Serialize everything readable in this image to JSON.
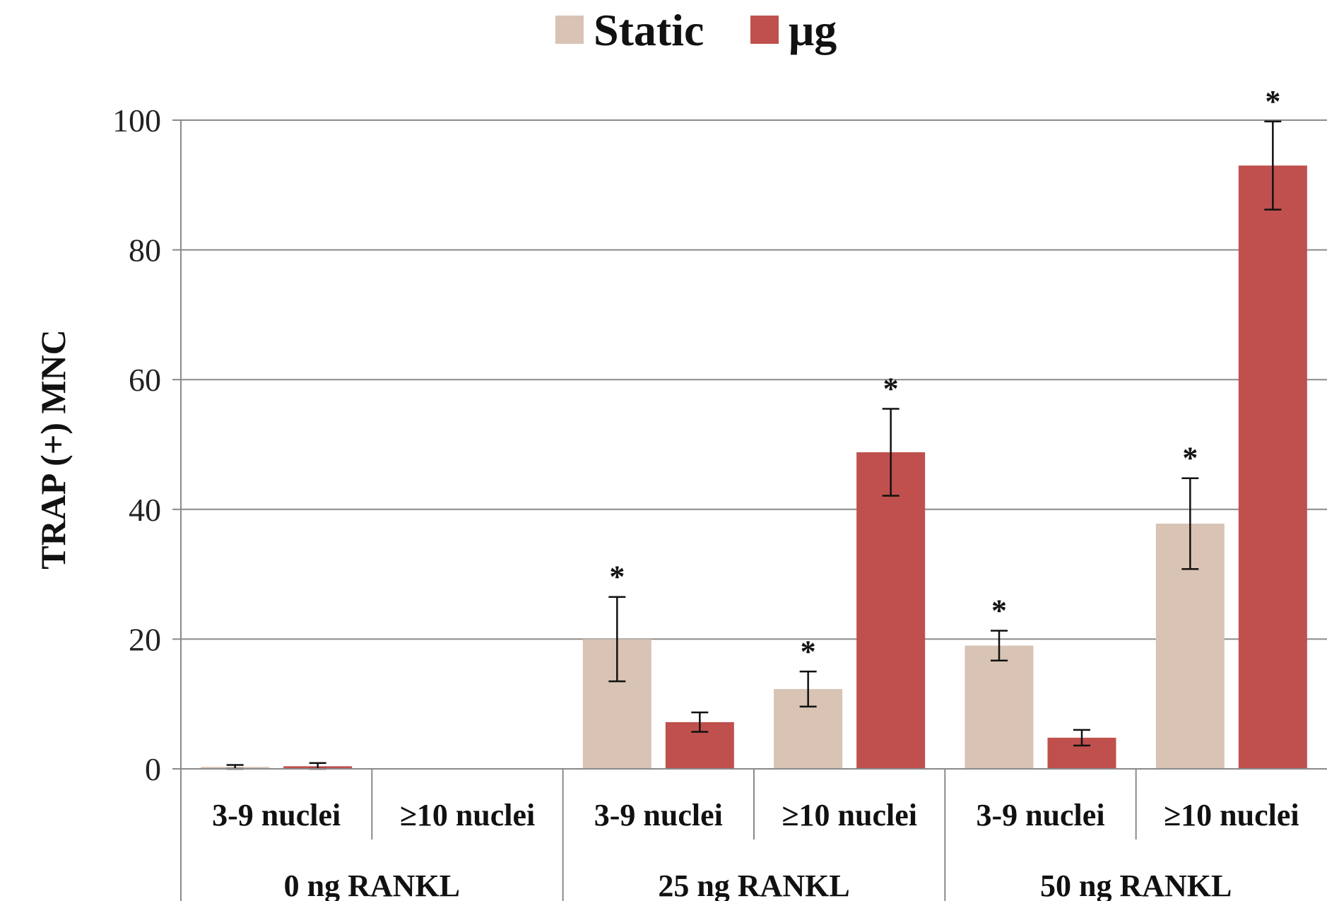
{
  "chart_data": {
    "type": "bar",
    "ylabel": "TRAP (+) MNC",
    "xlabel": "",
    "title": "",
    "ylim": [
      0,
      100
    ],
    "yticks": [
      0,
      20,
      40,
      60,
      80,
      100
    ],
    "grid": true,
    "legend_position": "top-center",
    "groups": [
      {
        "label": "0 ng RANKL",
        "subgroups": [
          "3-9 nuclei",
          "≥10 nuclei"
        ]
      },
      {
        "label": "25 ng RANKL",
        "subgroups": [
          "3-9 nuclei",
          "≥10 nuclei"
        ]
      },
      {
        "label": "50 ng RANKL",
        "subgroups": [
          "3-9 nuclei",
          "≥10 nuclei"
        ]
      }
    ],
    "categories": [
      "3-9 nuclei",
      "≥10 nuclei",
      "3-9 nuclei",
      "≥10 nuclei",
      "3-9 nuclei",
      "≥10 nuclei"
    ],
    "series": [
      {
        "name": "Static",
        "color": "#d8c3b4",
        "values": [
          0.3,
          0,
          20,
          12.3,
          19,
          37.8
        ],
        "errors": [
          0.3,
          0,
          6.5,
          2.7,
          2.3,
          7.0
        ],
        "significant": [
          false,
          false,
          true,
          true,
          true,
          true
        ]
      },
      {
        "name": "μg",
        "color": "#c0504d",
        "values": [
          0.4,
          0,
          7.2,
          48.8,
          4.8,
          93
        ],
        "errors": [
          0.5,
          0,
          1.5,
          6.7,
          1.2,
          6.8
        ],
        "significant": [
          false,
          false,
          false,
          true,
          false,
          true
        ]
      }
    ],
    "significance_marker": "*"
  }
}
